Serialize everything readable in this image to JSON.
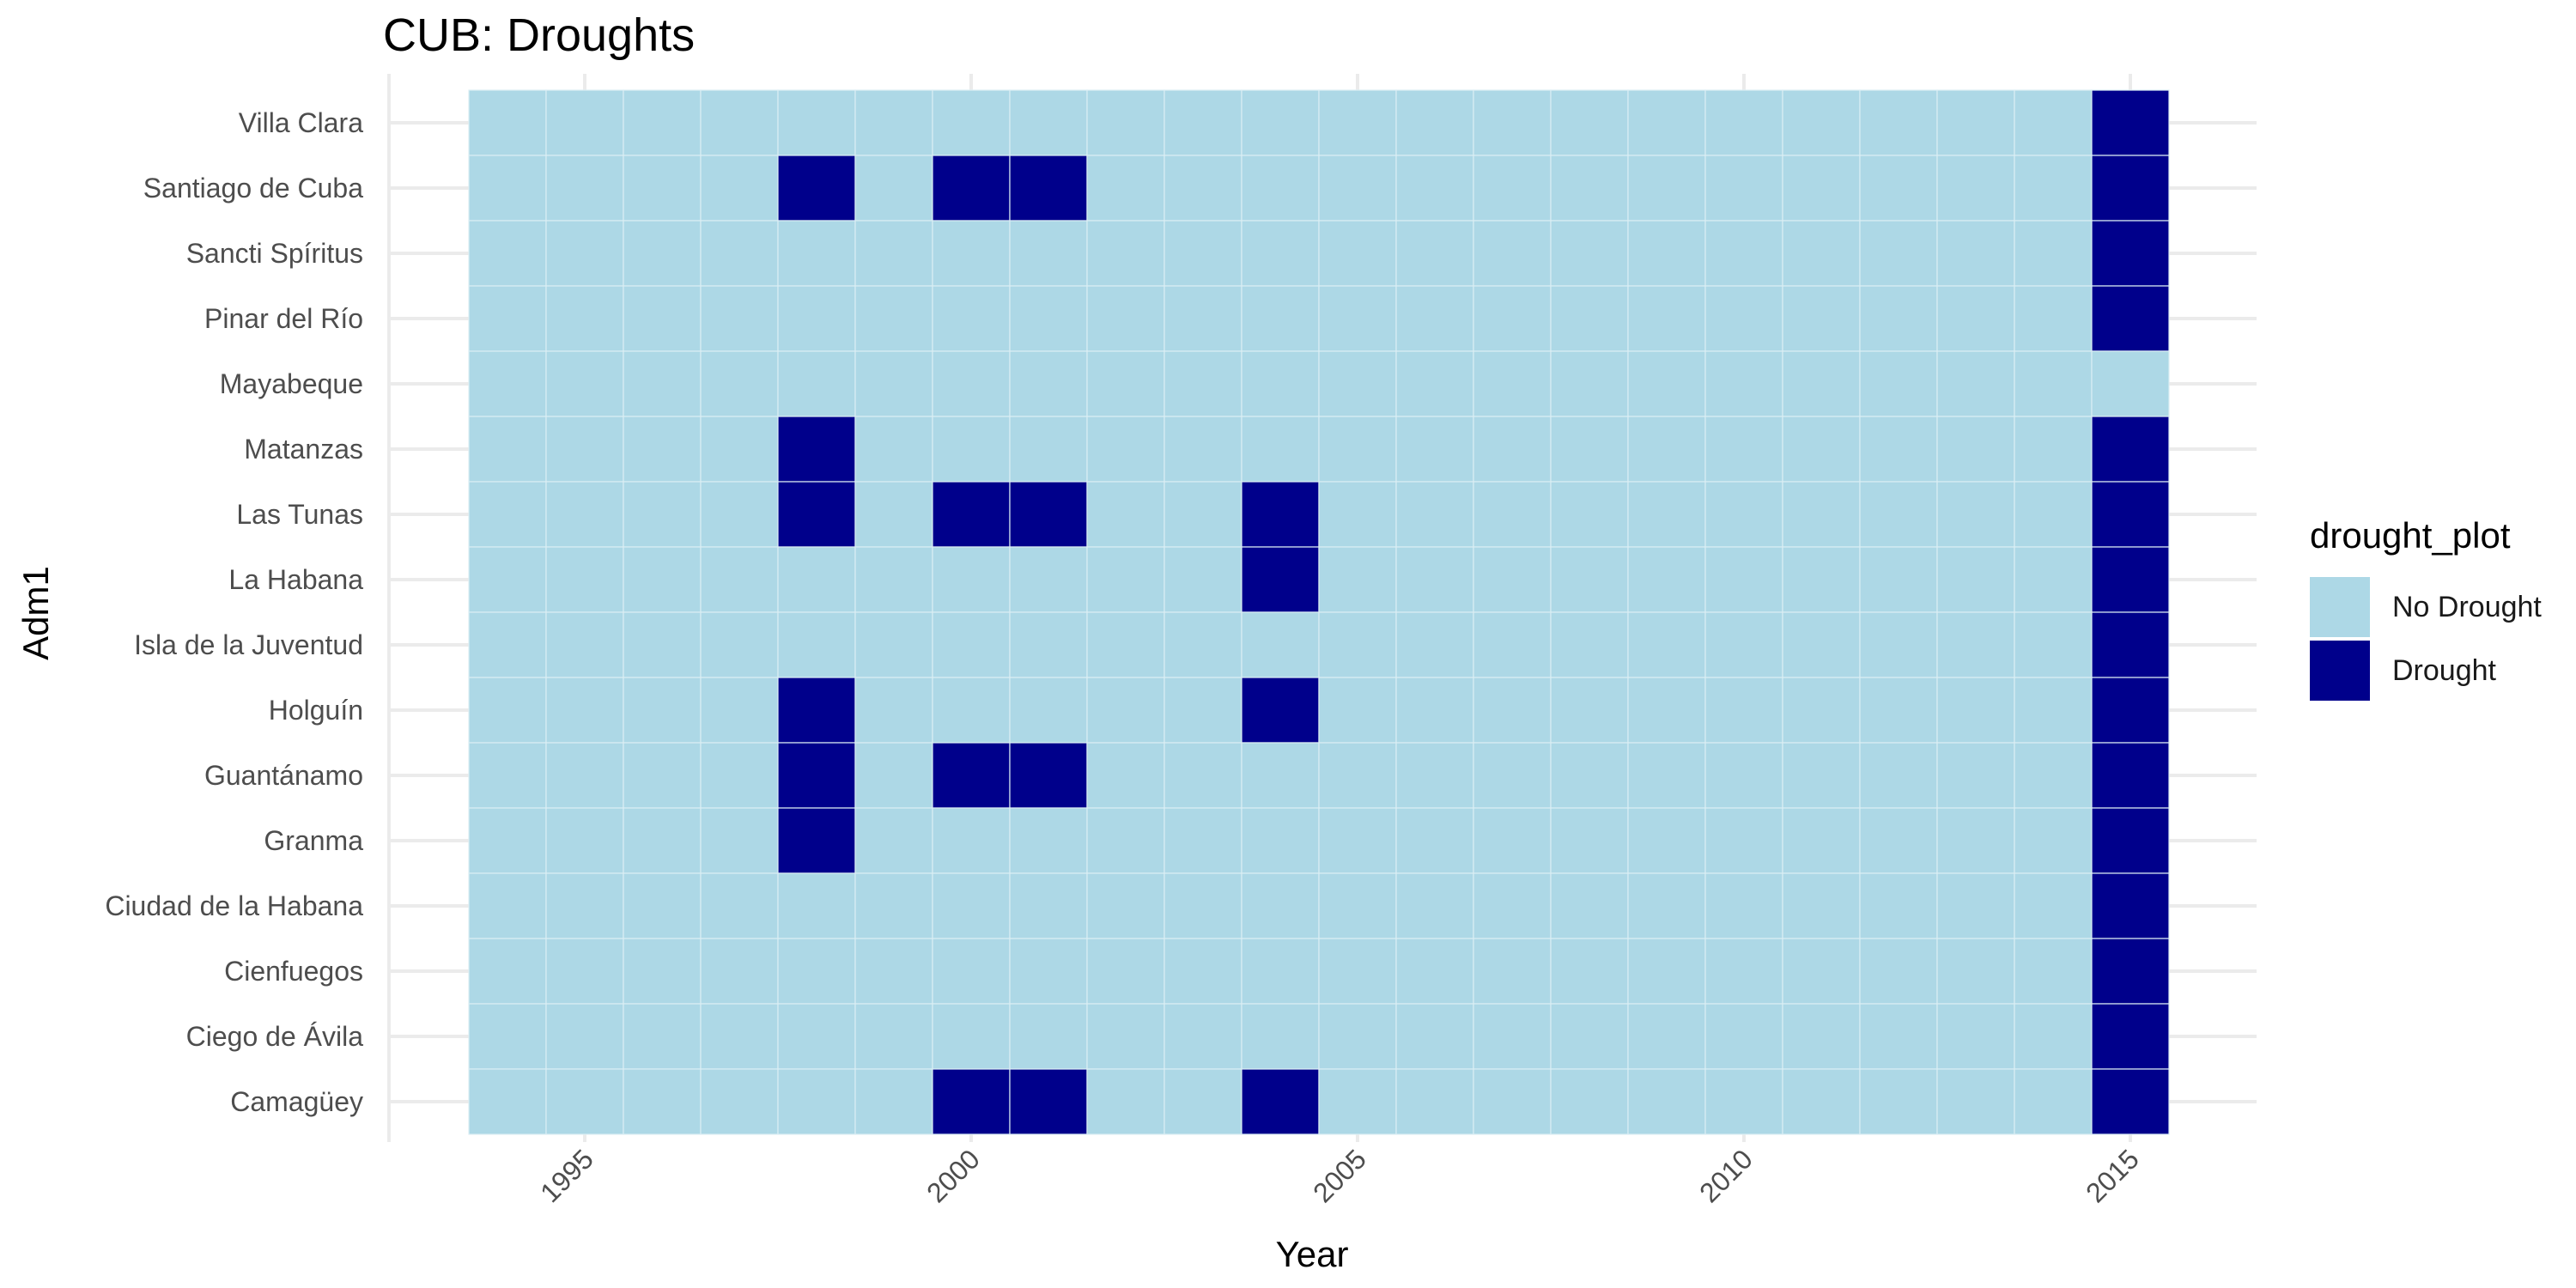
{
  "chart_data": {
    "type": "heatmap",
    "title": "CUB: Droughts",
    "xlabel": "Year",
    "ylabel": "Adm1",
    "x_tick_labels": [
      "1995",
      "2000",
      "2005",
      "2010",
      "2015"
    ],
    "x_ticks": [
      1995,
      2000,
      2005,
      2010,
      2015
    ],
    "xlim": [
      1993.5,
      2016.5
    ],
    "years": [
      1994,
      1995,
      1996,
      1997,
      1998,
      1999,
      2000,
      2001,
      2002,
      2003,
      2004,
      2005,
      2006,
      2007,
      2008,
      2009,
      2010,
      2011,
      2012,
      2013,
      2014,
      2015
    ],
    "regions": [
      "Villa Clara",
      "Santiago de Cuba",
      "Sancti Spíritus",
      "Pinar del Río",
      "Mayabeque",
      "Matanzas",
      "Las Tunas",
      "La Habana",
      "Isla de la Juventud",
      "Holguín",
      "Guantánamo",
      "Granma",
      "Ciudad de la Habana",
      "Cienfuegos",
      "Ciego de Ávila",
      "Camagüey"
    ],
    "droughts": [
      {
        "region": "Villa Clara",
        "years": [
          2015
        ]
      },
      {
        "region": "Santiago de Cuba",
        "years": [
          1998,
          2000,
          2001,
          2015
        ]
      },
      {
        "region": "Sancti Spíritus",
        "years": [
          2015
        ]
      },
      {
        "region": "Pinar del Río",
        "years": [
          2015
        ]
      },
      {
        "region": "Mayabeque",
        "years": []
      },
      {
        "region": "Matanzas",
        "years": [
          1998,
          2015
        ]
      },
      {
        "region": "Las Tunas",
        "years": [
          1998,
          2000,
          2001,
          2004,
          2015
        ]
      },
      {
        "region": "La Habana",
        "years": [
          2004,
          2015
        ]
      },
      {
        "region": "Isla de la Juventud",
        "years": [
          2015
        ]
      },
      {
        "region": "Holguín",
        "years": [
          1998,
          2004,
          2015
        ]
      },
      {
        "region": "Guantánamo",
        "years": [
          1998,
          2000,
          2001,
          2015
        ]
      },
      {
        "region": "Granma",
        "years": [
          1998,
          2015
        ]
      },
      {
        "region": "Ciudad de la Habana",
        "years": [
          2015
        ]
      },
      {
        "region": "Cienfuegos",
        "years": [
          2015
        ]
      },
      {
        "region": "Ciego de Ávila",
        "years": [
          2015
        ]
      },
      {
        "region": "Camagüey",
        "years": [
          2000,
          2001,
          2004,
          2015
        ]
      }
    ],
    "legend": {
      "title": "drought_plot",
      "position": "right",
      "items": [
        {
          "label": "No Drought",
          "color": "#ADD8E6"
        },
        {
          "label": "Drought",
          "color": "#00008B"
        }
      ]
    },
    "grid": true
  }
}
